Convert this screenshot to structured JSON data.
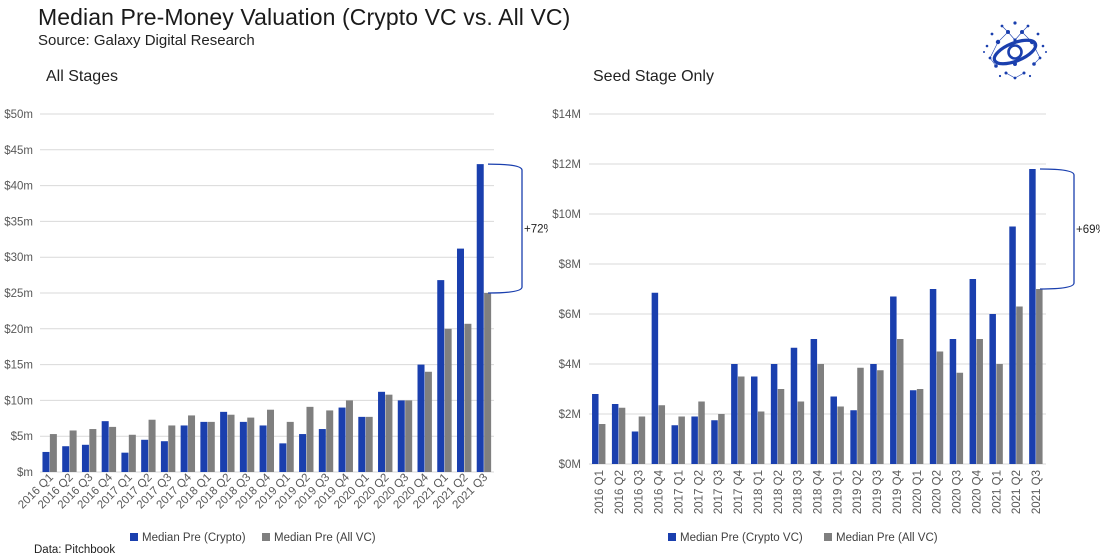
{
  "header": {
    "title": "Median Pre-Money Valuation (Crypto VC vs. All VC)",
    "source": "Source: Galaxy Digital Research",
    "footnote": "Data: Pitchbook",
    "logo_icon": "galaxy-network-logo-icon"
  },
  "colors": {
    "crypto": "#1a3fae",
    "allvc": "#7f7f7f",
    "grid": "#d9d9d9",
    "bracket": "#1a3fae"
  },
  "chart_data": [
    {
      "type": "bar",
      "title": "All Stages",
      "categories": [
        "2016 Q1",
        "2016 Q2",
        "2016 Q3",
        "2016 Q4",
        "2017 Q1",
        "2017 Q2",
        "2017 Q3",
        "2017 Q4",
        "2018 Q1",
        "2018 Q2",
        "2018 Q3",
        "2018 Q4",
        "2019 Q1",
        "2019 Q2",
        "2019 Q3",
        "2019 Q4",
        "2020 Q1",
        "2020 Q2",
        "2020 Q3",
        "2020 Q4",
        "2021 Q1",
        "2021 Q2",
        "2021 Q3"
      ],
      "series": [
        {
          "name": "Median Pre (Crypto)",
          "values": [
            2.8,
            3.6,
            3.8,
            7.1,
            2.7,
            4.5,
            4.3,
            6.5,
            7.0,
            8.4,
            7.0,
            6.5,
            4.0,
            5.3,
            6.0,
            9.0,
            7.7,
            11.2,
            10.0,
            15.0,
            26.8,
            31.2,
            43.0
          ]
        },
        {
          "name": "Median Pre (All VC)",
          "values": [
            5.3,
            5.8,
            6.0,
            6.3,
            5.2,
            7.3,
            6.5,
            7.9,
            7.0,
            8.0,
            7.6,
            8.7,
            7.0,
            9.1,
            8.6,
            10.0,
            7.7,
            10.8,
            10.0,
            14.0,
            20.0,
            20.7,
            25.0
          ]
        }
      ],
      "ylim": [
        0,
        50
      ],
      "yticks": [
        0,
        5,
        10,
        15,
        20,
        25,
        30,
        35,
        40,
        45,
        50
      ],
      "ytick_labels": [
        "$m",
        "$5m",
        "$10m",
        "$15m",
        "$20m",
        "$25m",
        "$30m",
        "$35m",
        "$40m",
        "$45m",
        "$50m"
      ],
      "annotation": "+72%"
    },
    {
      "type": "bar",
      "title": "Seed Stage Only",
      "categories": [
        "2016 Q1",
        "2016 Q2",
        "2016 Q3",
        "2016 Q4",
        "2017 Q1",
        "2017 Q2",
        "2017 Q3",
        "2017 Q4",
        "2018 Q1",
        "2018 Q2",
        "2018 Q3",
        "2018 Q4",
        "2019 Q1",
        "2019 Q2",
        "2019 Q3",
        "2019 Q4",
        "2020 Q1",
        "2020 Q2",
        "2020 Q3",
        "2020 Q4",
        "2021 Q1",
        "2021 Q2",
        "2021 Q3"
      ],
      "series": [
        {
          "name": "Median Pre (Crypto VC)",
          "values": [
            2.8,
            2.4,
            1.3,
            6.85,
            1.55,
            1.9,
            1.75,
            4.0,
            3.5,
            4.0,
            4.65,
            5.0,
            2.7,
            2.15,
            4.0,
            6.7,
            2.95,
            7.0,
            5.0,
            7.4,
            6.0,
            9.5,
            11.8
          ]
        },
        {
          "name": "Median Pre (All VC)",
          "values": [
            1.6,
            2.25,
            1.9,
            2.35,
            1.9,
            2.5,
            2.0,
            3.5,
            2.1,
            3.0,
            2.5,
            4.0,
            2.3,
            3.85,
            3.75,
            5.0,
            3.0,
            4.5,
            3.65,
            5.0,
            4.0,
            6.3,
            7.0
          ]
        }
      ],
      "ylim": [
        0,
        14
      ],
      "yticks": [
        0,
        2,
        4,
        6,
        8,
        10,
        12,
        14
      ],
      "ytick_labels": [
        "$0M",
        "$2M",
        "$4M",
        "$6M",
        "$8M",
        "$10M",
        "$12M",
        "$14M"
      ],
      "annotation": "+69%"
    }
  ]
}
